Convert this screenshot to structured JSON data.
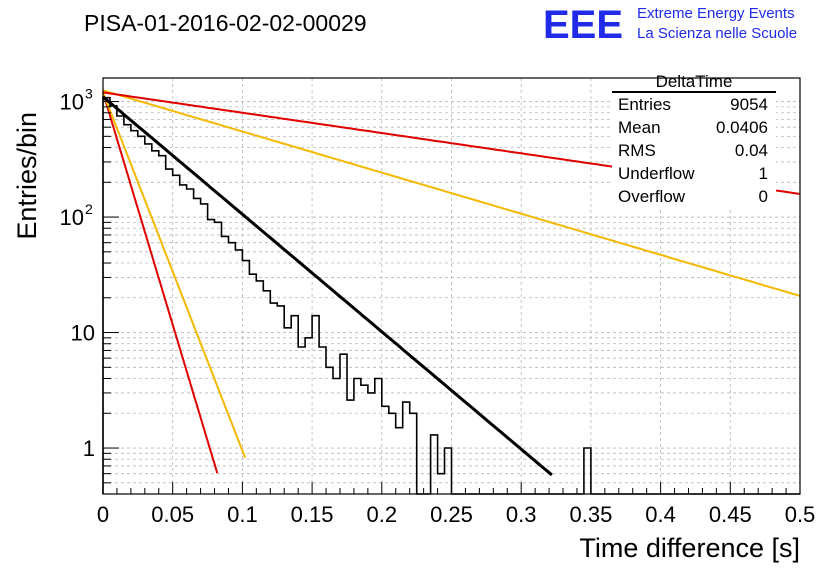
{
  "header": {
    "title": "PISA-01-2016-02-02-00029",
    "logo_text": "EEE",
    "org_line1": "Extreme Energy Events",
    "org_line2": "La Scienza nelle Scuole"
  },
  "stats_box": {
    "name": "DeltaTime",
    "rows": [
      {
        "label": "Entries",
        "value": "9054"
      },
      {
        "label": "Mean",
        "value": "0.0406"
      },
      {
        "label": "RMS",
        "value": "0.04"
      },
      {
        "label": "Underflow",
        "value": "1"
      },
      {
        "label": "Overflow",
        "value": "0"
      }
    ]
  },
  "colors": {
    "histogram": "#000000",
    "fit": "#000000",
    "red_curves": "#e00000",
    "orange_curves": "#f5b800",
    "grid": "#b8b8b8",
    "logo": "#1f2be8"
  },
  "chart_data": {
    "type": "line",
    "title": "PISA-01-2016-02-02-00029",
    "xlabel": "Time difference [s]",
    "ylabel": "Entries/bin",
    "xlim": [
      0,
      0.5
    ],
    "ylim": [
      0.4,
      1600
    ],
    "yscale": "log",
    "grid": true,
    "legend_position": "top-right",
    "x_ticks": [
      0,
      0.05,
      0.1,
      0.15,
      0.2,
      0.25,
      0.3,
      0.35,
      0.4,
      0.45,
      0.5
    ],
    "x_tick_labels": [
      "0",
      "0.05",
      "0.1",
      "0.15",
      "0.2",
      "0.25",
      "0.3",
      "0.35",
      "0.4",
      "0.45",
      "0.5"
    ],
    "y_ticks": [
      1,
      10,
      100,
      1000
    ],
    "y_tick_labels": [
      "1",
      "10",
      "10^2",
      "10^3"
    ],
    "histogram": {
      "bin_width": 0.005,
      "x_start": 0,
      "counts": [
        1080,
        920,
        750,
        630,
        560,
        500,
        430,
        375,
        340,
        260,
        230,
        190,
        175,
        145,
        130,
        95,
        90,
        68,
        60,
        52,
        42,
        32,
        28,
        23,
        18,
        17,
        11,
        14,
        7.5,
        9,
        14,
        7.5,
        5,
        4,
        6.5,
        2.6,
        4,
        3.5,
        3,
        4,
        2.3,
        2,
        1.5,
        2.5,
        2,
        0.4,
        0.4,
        1.3,
        0.6,
        1,
        0.4,
        0.4,
        0.4,
        0.4,
        0.4,
        0.4,
        0.4,
        0.4,
        0.4,
        0.4,
        0.4,
        0.4,
        0.4,
        0.4,
        0.4,
        0.4,
        0.4,
        0.4,
        0.4,
        1,
        0.4,
        0.4,
        0.4,
        0.4,
        0.4,
        0.4,
        0.4,
        0.4,
        0.4,
        0.4,
        0.4,
        0.4,
        0.4,
        0.4,
        0.4,
        0.4,
        0.4,
        0.4,
        0.4,
        0.4,
        0.4,
        0.4,
        0.4,
        0.4,
        0.4,
        0.4,
        0.4,
        0.4,
        0.4,
        0.4
      ]
    },
    "fit": {
      "amplitude": 1100,
      "decay": 0.0427,
      "x_range": [
        0,
        0.322
      ]
    },
    "curves": [
      {
        "color": "red",
        "amplitude": 1200,
        "decay": 0.0108,
        "x_range": [
          0,
          0.082
        ]
      },
      {
        "color": "orange",
        "amplitude": 1200,
        "decay": 0.014,
        "x_range": [
          0,
          0.102
        ]
      },
      {
        "color": "orange",
        "amplitude": 1250,
        "decay": 0.122,
        "x_range": [
          0,
          0.5
        ]
      },
      {
        "color": "red",
        "amplitude": 1200,
        "decay": 0.247,
        "x_range": [
          0,
          0.5
        ]
      }
    ]
  }
}
